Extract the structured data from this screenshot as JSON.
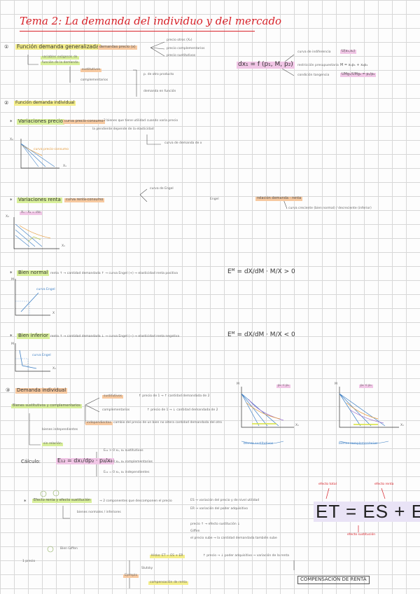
{
  "title": "Tema 2: La demanda del individuo y del mercado",
  "colors": {
    "title": "#d8232a",
    "green": "#d8ef9a",
    "yellow": "#f4ee8a",
    "orange": "#f7c9a0",
    "pink": "#f1c6e6",
    "blue_ink": "#3d7fc4"
  },
  "s1": {
    "num": "①",
    "heading": "Función demanda generalizada",
    "a1": "demandas precio (x)",
    "a2": "precio otros (X₂)",
    "a3": "precio complementarios",
    "a4": "precio sustitutivos",
    "left_note_1": "variables exógenas de",
    "left_note_2": "función de la demanda",
    "sub1": "sustitutivos",
    "sub2": "complementarios",
    "r1": "p. de otro producto",
    "r2": "demanda en función",
    "formula": "dx₁ = f (p₁, M, p₂)",
    "f1": "curva de indiferencia",
    "f1v": "U(x₁,x₂)",
    "f2": "restricción presupuestaria",
    "f2v": "M = x₁p₁ + x₂p₂",
    "f3": "condición tangencia",
    "f3v": "UMg₁/UMg₂ = p₁/p₂"
  },
  "s2": {
    "num": "②",
    "heading": "Función demanda individual"
  },
  "s2a": {
    "label": "Variaciones precio",
    "t1": "curva precio-consumo",
    "t2": "2 bienes que tiene utilidad cuando varía precio",
    "t3": "la pendiente depende de la elasticidad",
    "t4": "curva de demanda de x",
    "axis_y": "X₂",
    "axis_x": "X₁",
    "note": "curva precio-consumo"
  },
  "s2b": {
    "label": "Variaciones renta",
    "t1": "curva renta-consumo",
    "t2": "Engel",
    "t3": "curva de Engel",
    "t4": "relación demanda - renta",
    "t5": "curva creciente (bien normal) / decreciente (inferior)",
    "tag": "X₁ - X₂ = cte",
    "axis_x": "X₁",
    "axis_y": "X₂"
  },
  "s2c": {
    "label": "Bien normal",
    "t1": "renta ↑ → cantidad demandada ↑ → curva Engel (+) → elasticidad renta positiva",
    "formula": "Eᴹ = dX/dM · M/X > 0",
    "axis_y": "M",
    "axis_x": "X",
    "note": "curva Engel"
  },
  "s2d": {
    "label": "Bien inferior",
    "t1": "renta ↑ → cantidad demandada ↓ → curva Engel (−) → elasticidad renta negativa",
    "formula": "Eᴹ = dX/dM · M/X < 0",
    "axis_y": "M",
    "axis_x": "X₁",
    "note": "curva Engel"
  },
  "s3": {
    "num": "③",
    "heading": "Demanda individual",
    "b1": "Bienes sustitutivos y complementarios",
    "c1": "sustitutivos",
    "c1t": "↑ precio de 1 → ↑ cantidad demandada de 2",
    "c2": "complementarios",
    "c2t": "↑ precio de 1 → ↓ cantidad demandada de 2",
    "c3": "independientes",
    "c3t": "cambio del precio de un bien no altera cantidad demandada del otro",
    "bl1": "bienes independientes",
    "bl2": "sin relación",
    "calc": "Cálculo:",
    "eq": "E₁₂ = dx₁/dp₂ · p₂/x₁",
    "e1": "E₁₂ > 0   x₁, x₂  sustitutivos",
    "e2": "E₁₂ < 0   x₁, x₂  complementarios",
    "e3": "E₁₂ = 0   x₁, x₂  independientes",
    "g1_tag": "p₂ < p₁",
    "g1_axis_y": "M",
    "g1_axis_x": "X₁",
    "g1_caption": "bienes sustitutivos",
    "g2_tag": "p₂ < p₁",
    "g2_axis_y": "M",
    "g2_axis_x": "X₁",
    "g2_caption": "bienes complementarios"
  },
  "s4": {
    "marker": "*",
    "label": "Efecto renta y efecto sustitución",
    "t1": "→ 2 componentes que descomponen el precio",
    "t2": "ES → variación del precio y de nivel utilidad",
    "t3": "ER → variación del poder adquisitivo",
    "t4": "bienes normales / inferiores",
    "t5": "Giffen",
    "t6": "el precio sube → la cantidad demandada también sube",
    "big": "ET = ES + ER",
    "top_l": "efecto total",
    "top_r": "efecto renta",
    "bottom": "efecto sustitución",
    "bl": "precio ↑ → efecto sustitución ↓",
    "bl2": "Bien Giffen",
    "eq1": "Hicks: ET = ES + ER",
    "eq2": "Slutsky",
    "eq3": "compensación de renta",
    "eq_right": "↑ precio → ↓ poder adquisitivo → variación de la renta",
    "compensation": "COMPENSACIÓN DE RENTA",
    "ej": "Ejemplo",
    "bullet": "1 precio"
  }
}
